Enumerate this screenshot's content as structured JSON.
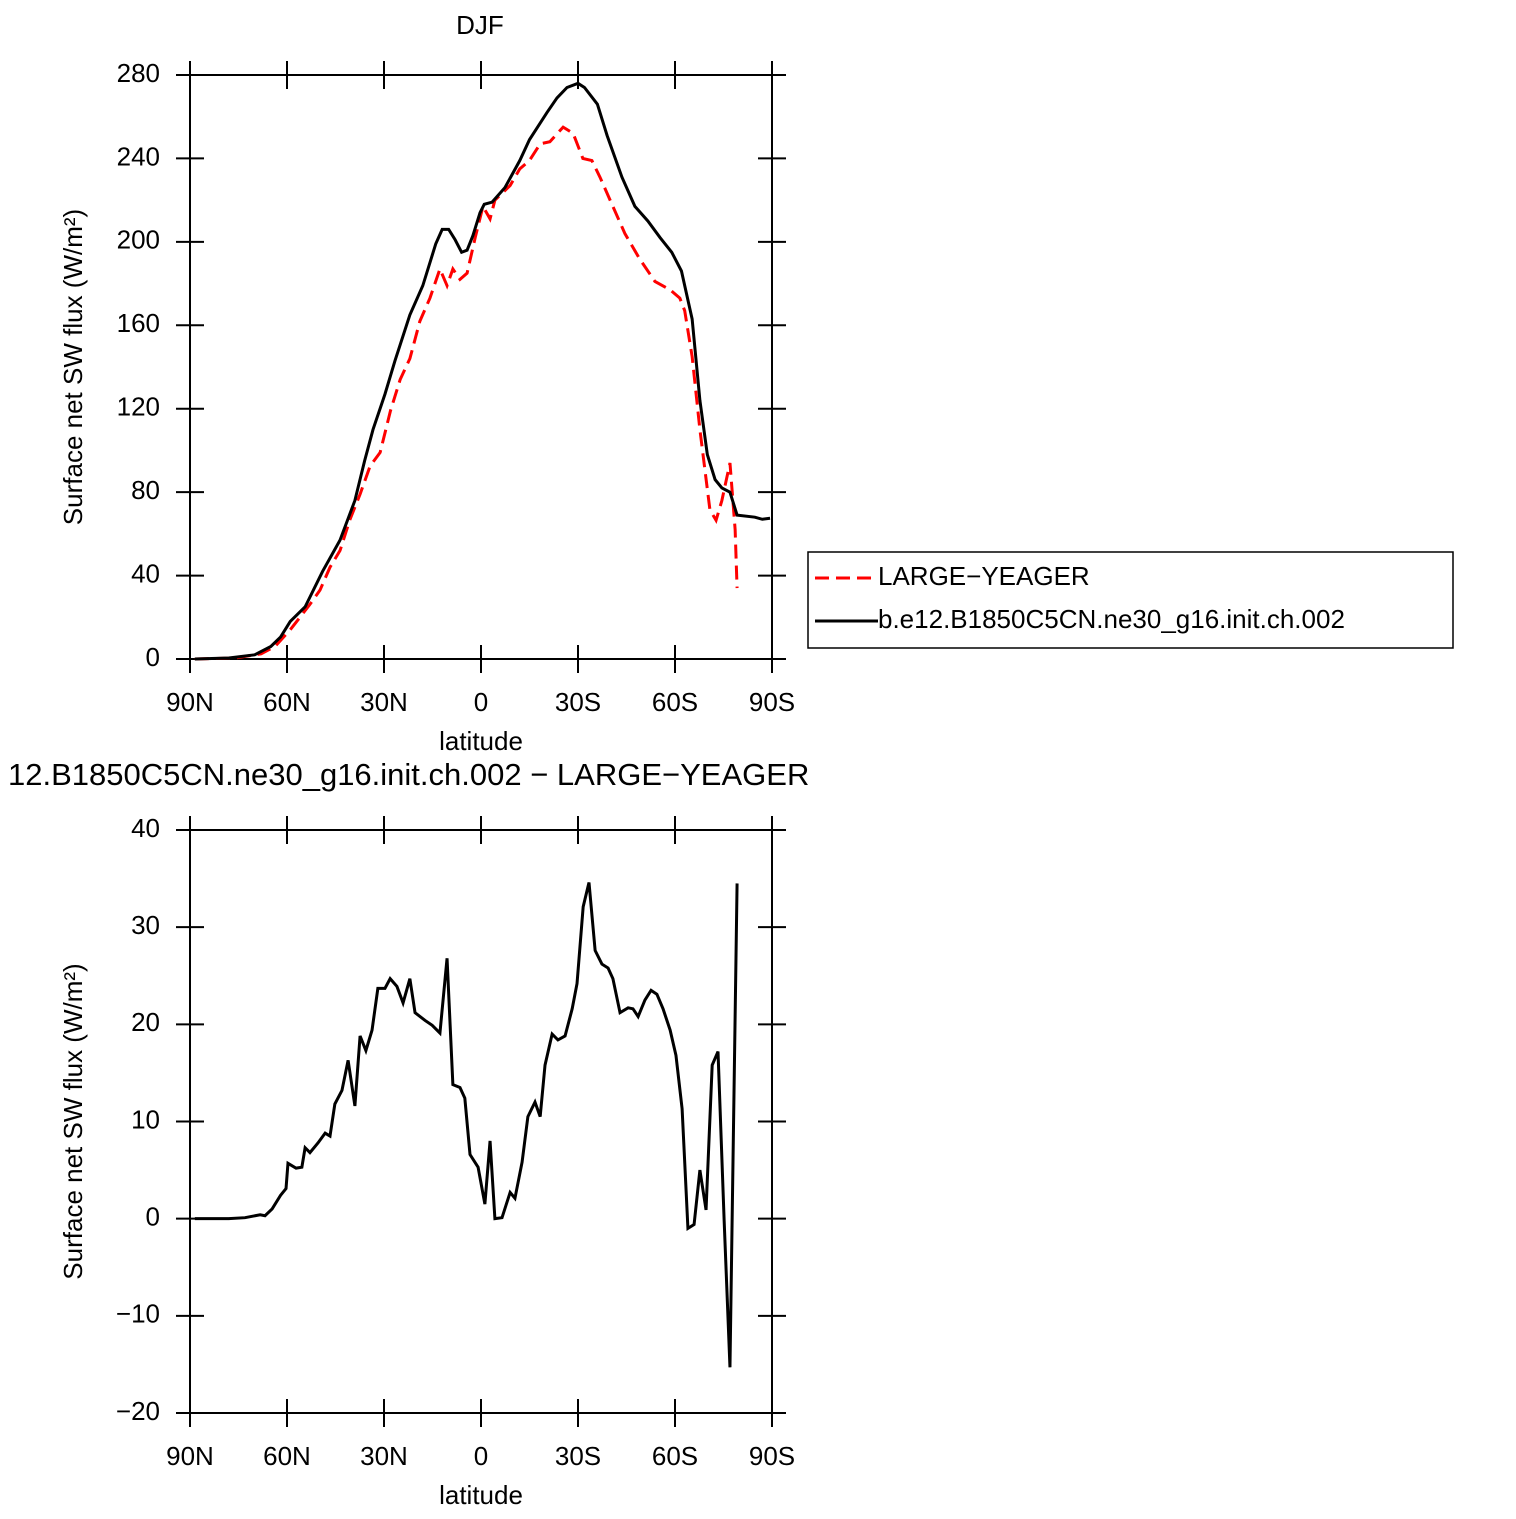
{
  "chart_data": [
    {
      "type": "line",
      "title": "DJF",
      "xlabel": "latitude",
      "ylabel": "Surface net SW flux (W/m²)",
      "xlim": [
        90,
        -90
      ],
      "xticks": [
        {
          "value": 90,
          "label": "90N"
        },
        {
          "value": 60,
          "label": "60N"
        },
        {
          "value": 30,
          "label": "30N"
        },
        0,
        {
          "value": -30,
          "label": "30S"
        },
        {
          "value": -60,
          "label": "60S"
        },
        {
          "value": -90,
          "label": "90S"
        }
      ],
      "ylim": [
        0,
        280
      ],
      "yticks": [
        0,
        40,
        80,
        120,
        160,
        200,
        240,
        280
      ],
      "legend": "right",
      "series": [
        {
          "name": "LARGE−YEAGER",
          "color": "#ff0000",
          "dash": true,
          "x": [
            88.5,
            76,
            68,
            63.7,
            59,
            56,
            53,
            49.8,
            46.7,
            43.6,
            40.5,
            37.4,
            34.3,
            31.2,
            28,
            25,
            22,
            18.9,
            15.8,
            12.7,
            10.5,
            8.7,
            6.5,
            4.3,
            1.8,
            -0.6,
            -2.8,
            -4.3,
            -9,
            -12,
            -15,
            -18.3,
            -21.3,
            -25.4,
            -28.5,
            -31.5,
            -34.3,
            -36.8,
            -40.5,
            -44.5,
            -49,
            -53.8,
            -58.5,
            -61.5,
            -63,
            -65.3,
            -67.7,
            -70.8,
            -72.7,
            -74.5,
            -77,
            -78.6,
            -79.2
          ],
          "values": [
            0,
            0.5,
            2.5,
            6,
            14,
            20,
            26,
            33,
            44,
            52,
            67,
            79,
            92.5,
            99,
            119,
            134,
            144,
            162,
            173,
            187,
            179,
            187,
            182,
            185,
            202,
            217,
            211,
            220,
            227,
            235,
            239,
            247,
            248,
            255,
            252,
            240,
            239,
            231,
            218,
            204,
            192,
            181,
            177,
            173,
            167,
            145,
            110,
            71.5,
            66.5,
            76,
            94,
            62,
            34
          ]
        },
        {
          "name": "b.e12.B1850C5CN.ne30_g16.init.ch.002",
          "color": "#000000",
          "dash": false,
          "x": [
            88.5,
            78,
            70,
            65,
            62,
            59,
            54.4,
            49,
            43.6,
            39,
            36,
            33.4,
            29.7,
            26.6,
            22,
            18,
            14,
            12,
            10,
            8,
            6,
            4.3,
            2.5,
            0.3,
            -1,
            -3.4,
            -7.4,
            -12,
            -15,
            -20.4,
            -23.5,
            -26.6,
            -30,
            -32,
            -36,
            -39,
            -43.6,
            -47.6,
            -51.6,
            -55.4,
            -59,
            -62,
            -65.3,
            -67.7,
            -70,
            -72.4,
            -74.5,
            -77,
            -79.2,
            -84.7,
            -87,
            -89.4
          ],
          "values": [
            0,
            0.5,
            2,
            6,
            10.5,
            18,
            25,
            42,
            57,
            76,
            95,
            110,
            127,
            143,
            165,
            179,
            199,
            206,
            206,
            201,
            195,
            196,
            203,
            214,
            218,
            219,
            226,
            239,
            249,
            262,
            269,
            274,
            276,
            274,
            266,
            251,
            231,
            217,
            210,
            202,
            195,
            186,
            163,
            124,
            98,
            86,
            82,
            80,
            69,
            68,
            67,
            67.5
          ]
        }
      ]
    },
    {
      "type": "line",
      "title": "12.B1850C5CN.ne30_g16.init.ch.002 − LARGE−YEAGER",
      "xlabel": "latitude",
      "ylabel": "Surface net SW flux (W/m²)",
      "xlim": [
        90,
        -90
      ],
      "xticks": [
        {
          "value": 90,
          "label": "90N"
        },
        {
          "value": 60,
          "label": "60N"
        },
        {
          "value": 30,
          "label": "30N"
        },
        0,
        {
          "value": -30,
          "label": "30S"
        },
        {
          "value": -60,
          "label": "60S"
        },
        {
          "value": -90,
          "label": "90S"
        }
      ],
      "ylim": [
        -20,
        40
      ],
      "yticks": [
        {
          "value": -20,
          "label": "−20"
        },
        {
          "value": -10,
          "label": "−10"
        },
        0,
        10,
        20,
        30,
        40
      ],
      "series": [
        {
          "color": "#000000",
          "dash": false,
          "x": [
            88.5,
            78,
            73,
            68.3,
            66.8,
            64.6,
            62,
            60.3,
            59.7,
            57.2,
            55.4,
            54.4,
            52.9,
            50.4,
            48.2,
            46.7,
            45.2,
            43,
            41.1,
            39,
            37.4,
            35.6,
            33.7,
            31.9,
            29.7,
            28.1,
            26,
            24.1,
            22,
            20.4,
            17.3,
            15.1,
            12.7,
            10.5,
            8.7,
            6.5,
            5,
            3.4,
            0.9,
            -1.2,
            -2.8,
            -4.3,
            -6.5,
            -9,
            -10.5,
            -12.7,
            -14.5,
            -16.7,
            -18.3,
            -19.8,
            -22,
            -23.8,
            -26,
            -28.2,
            -29.7,
            -31.6,
            -33.4,
            -35.3,
            -37.4,
            -39.3,
            -40.8,
            -43,
            -45.5,
            -47,
            -48.6,
            -50.7,
            -52.6,
            -54.4,
            -56.3,
            -58.5,
            -60.3,
            -62.2,
            -64,
            -65.9,
            -67.7,
            -69.6,
            -71.5,
            -73.3,
            -75.2,
            -77,
            -79.2
          ],
          "values": [
            0,
            0,
            0.1,
            0.4,
            0.3,
            1,
            2.4,
            3.1,
            5.7,
            5.2,
            5.3,
            7.3,
            6.8,
            7.8,
            8.8,
            8.5,
            11.8,
            13.2,
            16.3,
            11.6,
            18.8,
            17.3,
            19.4,
            23.7,
            23.7,
            24.7,
            23.9,
            22.2,
            24.7,
            21.2,
            20.4,
            19.9,
            19.1,
            26.8,
            13.8,
            13.5,
            12.4,
            6.6,
            5.3,
            1.5,
            8,
            0,
            0.1,
            2.7,
            2.1,
            5.8,
            10.5,
            12,
            10.5,
            15.8,
            19,
            18.4,
            18.8,
            21.6,
            24.2,
            32.1,
            34.6,
            27.6,
            26.2,
            25.8,
            24.7,
            21.2,
            21.7,
            21.6,
            20.8,
            22.5,
            23.5,
            23.1,
            21.6,
            19.4,
            16.8,
            11.3,
            -1,
            -0.6,
            5,
            0.9,
            15.8,
            17.2,
            -0.2,
            -15.3,
            34.5
          ]
        }
      ]
    }
  ]
}
